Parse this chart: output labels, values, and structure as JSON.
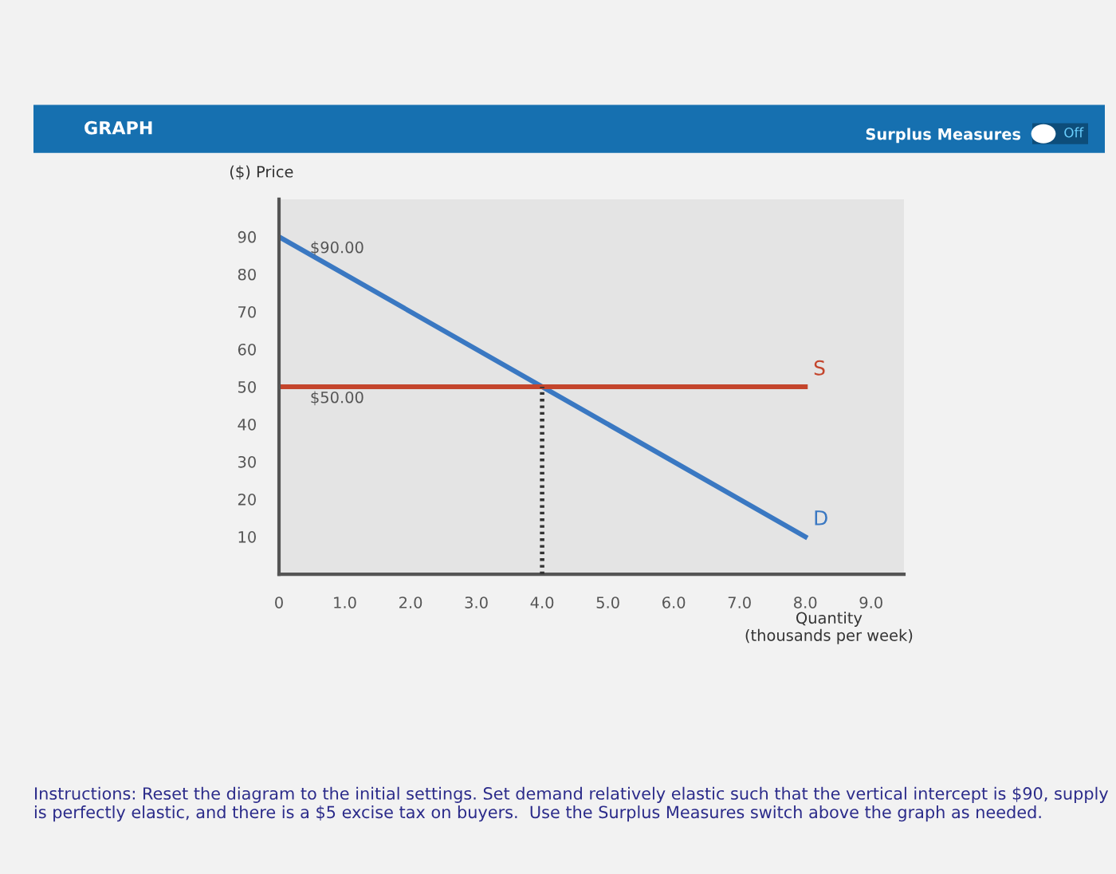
{
  "chart_data": {
    "type": "line",
    "title": "GRAPH",
    "xlabel": "Quantity\n(thousands per week)",
    "ylabel": "($) Price",
    "series": [
      {
        "name": "D",
        "color": "#3a78c2",
        "x": [
          0,
          8
        ],
        "values": [
          90,
          10
        ]
      },
      {
        "name": "S",
        "color": "#c4452c",
        "x": [
          0,
          8
        ],
        "values": [
          50,
          50
        ]
      },
      {
        "color": "#333333",
        "x": [
          4,
          4
        ],
        "values": [
          0,
          50
        ],
        "line_style": "dotted"
      }
    ],
    "xlim": [
      0,
      9.5
    ],
    "ylim": [
      0,
      100
    ],
    "xticks": [
      0,
      {
        "value": 1,
        "label": "1.0"
      },
      {
        "value": 2,
        "label": "2.0"
      },
      {
        "value": 3,
        "label": "3.0"
      },
      {
        "value": 4,
        "label": "4.0"
      },
      {
        "value": 5,
        "label": "5.0"
      },
      {
        "value": 6,
        "label": "6.0"
      },
      {
        "value": 7,
        "label": "7.0"
      },
      {
        "value": 8,
        "label": "8.0"
      },
      {
        "value": 9,
        "label": "9.0"
      }
    ],
    "yticks": [
      10,
      20,
      30,
      40,
      50,
      60,
      70,
      80,
      90
    ],
    "grid": false,
    "legend": false,
    "annotations": [
      {
        "text": "$90.00",
        "x": 0,
        "y": 90
      },
      {
        "text": "$50.00",
        "x": 0,
        "y": 50
      },
      "Surplus Measures",
      "Off",
      "Instructions: Reset the diagram to the initial settings. Set demand relatively elastic such that the vertical intercept is $90, supply is perfectly elastic, and there is a $5 excise tax on buyers.  Use the Surplus Measures switch above the graph as needed."
    ]
  }
}
